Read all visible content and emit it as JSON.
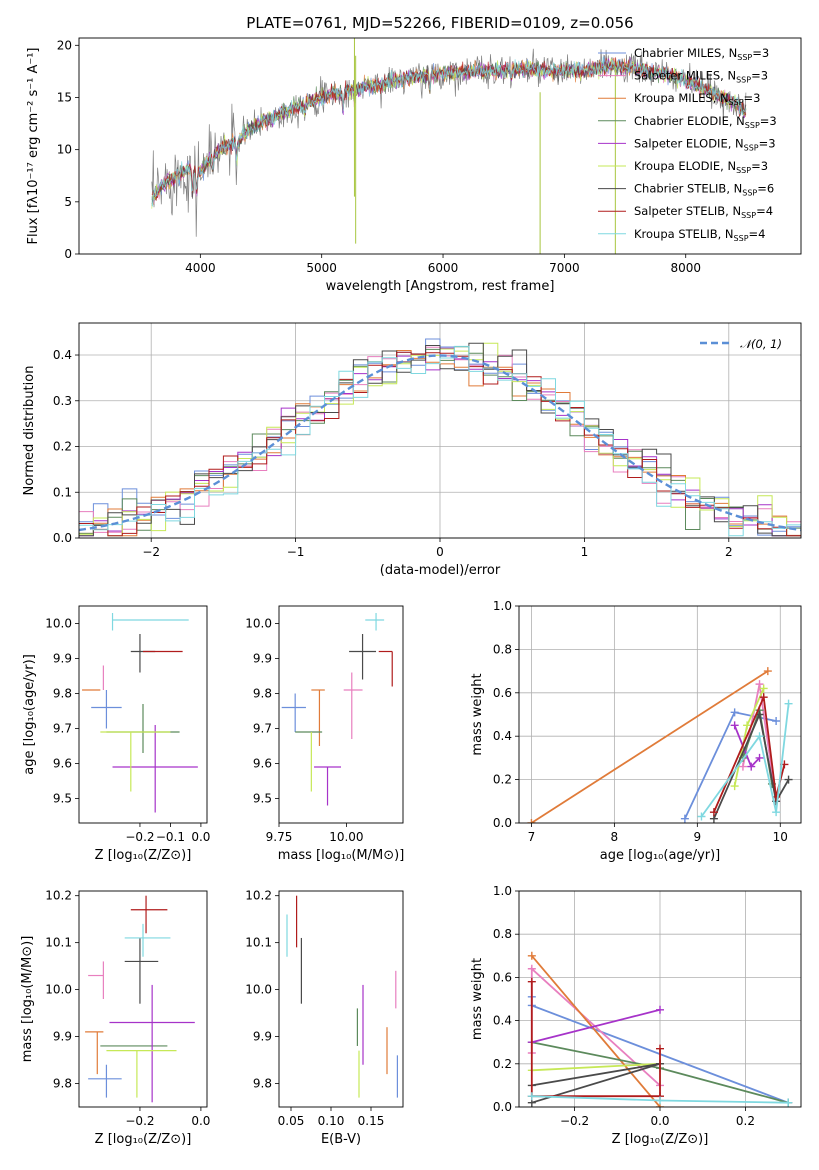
{
  "title": "PLATE=0761, MJD=52266, FIBERID=0109, z=0.056",
  "models": [
    {
      "name": "Chabrier MILES",
      "nssp": "3",
      "color": "#6c8fdb"
    },
    {
      "name": "Salpeter MILES",
      "nssp": "3",
      "color": "#e87fbf"
    },
    {
      "name": "Kroupa MILES",
      "nssp": "3",
      "color": "#e07b39"
    },
    {
      "name": "Chabrier ELODIE",
      "nssp": "3",
      "color": "#5c8a5c"
    },
    {
      "name": "Salpeter ELODIE",
      "nssp": "3",
      "color": "#a633c9"
    },
    {
      "name": "Kroupa ELODIE",
      "nssp": "3",
      "color": "#c6e857"
    },
    {
      "name": "Chabrier STELIB",
      "nssp": "6",
      "color": "#4a4a4a"
    },
    {
      "name": "Salpeter STELIB",
      "nssp": "4",
      "color": "#b01c1c"
    },
    {
      "name": "Kroupa STELIB",
      "nssp": "4",
      "color": "#7fd8e0"
    }
  ],
  "chart_data": [
    {
      "id": "spectrum",
      "type": "line",
      "xlabel": "wavelength [Angstrom, rest frame]",
      "ylabel": "Flux [fλ10⁻¹⁷ erg cm⁻² s⁻¹ A⁻¹]",
      "xlim": [
        3000,
        8950
      ],
      "ylim": [
        0,
        20.7
      ],
      "xticks": [
        4000,
        5000,
        6000,
        7000,
        8000
      ],
      "yticks": [
        0,
        5,
        10,
        15,
        20
      ],
      "legend_position": "right",
      "continuum": [
        [
          3600,
          5.2
        ],
        [
          3700,
          6.8
        ],
        [
          3800,
          7.4
        ],
        [
          3900,
          8.2
        ],
        [
          4000,
          7.8
        ],
        [
          4100,
          9.5
        ],
        [
          4200,
          10.3
        ],
        [
          4300,
          10.8
        ],
        [
          4400,
          11.8
        ],
        [
          4500,
          12.6
        ],
        [
          4600,
          13.1
        ],
        [
          4700,
          13.6
        ],
        [
          4800,
          14.1
        ],
        [
          4900,
          14.6
        ],
        [
          5000,
          15.0
        ],
        [
          5100,
          15.3
        ],
        [
          5200,
          15.6
        ],
        [
          5300,
          15.9
        ],
        [
          5400,
          16.1
        ],
        [
          5500,
          16.3
        ],
        [
          5600,
          16.6
        ],
        [
          5800,
          17.0
        ],
        [
          6000,
          17.3
        ],
        [
          6200,
          17.5
        ],
        [
          6400,
          17.6
        ],
        [
          6600,
          17.7
        ],
        [
          6800,
          17.6
        ],
        [
          7000,
          17.5
        ],
        [
          7200,
          17.6
        ],
        [
          7400,
          18.1
        ],
        [
          7600,
          17.7
        ],
        [
          7800,
          17.3
        ],
        [
          8000,
          16.6
        ],
        [
          8200,
          15.6
        ],
        [
          8400,
          14.5
        ],
        [
          8500,
          13.6
        ]
      ],
      "features": [
        [
          3934,
          3.0
        ],
        [
          3969,
          2.6
        ],
        [
          4102,
          1.5
        ],
        [
          4300,
          2.0
        ],
        [
          4861,
          1.0
        ],
        [
          5175,
          2.0
        ],
        [
          5270,
          1.0
        ],
        [
          5890,
          1.5
        ],
        [
          6563,
          1.0
        ]
      ],
      "data_series_color": "#808080"
    },
    {
      "id": "residuals",
      "type": "histogram",
      "xlabel": "(data-model)/error",
      "ylabel": "Normed distribution",
      "xlim": [
        -2.5,
        2.5
      ],
      "ylim": [
        0,
        0.47
      ],
      "xticks": [
        -2,
        -1,
        0,
        1,
        2
      ],
      "yticks": [
        0.0,
        0.1,
        0.2,
        0.3,
        0.4
      ],
      "bin_width": 0.1,
      "reference_curve": "𝒩(0, 1)",
      "legend_position": "top-right",
      "grid": true
    },
    {
      "id": "age_vs_Z",
      "type": "scatter",
      "xlabel": "Z [log₁₀(Z/Z⊙)]",
      "ylabel": "age  [log₁₀(age/yr)]",
      "xlim": [
        -0.4,
        0.02
      ],
      "ylim": [
        9.43,
        10.05
      ],
      "xticks": [
        -0.2,
        -0.1,
        0.0
      ],
      "yticks": [
        9.5,
        9.6,
        9.7,
        9.8,
        9.9,
        10.0
      ],
      "points": [
        {
          "x": -0.31,
          "y": 9.76,
          "ex": [
            0.05,
            0.05
          ],
          "ey": [
            0.06,
            0.05
          ]
        },
        {
          "x": -0.32,
          "y": 9.81,
          "ex": [
            0.0,
            0.0
          ],
          "ey": [
            0.0,
            0.07
          ]
        },
        {
          "x": -0.35,
          "y": 9.81,
          "ex": [
            0.04,
            0.02
          ],
          "ey": [
            0.0,
            0.0
          ]
        },
        {
          "x": -0.19,
          "y": 9.69,
          "ex": [
            0.12,
            0.12
          ],
          "ey": [
            0.06,
            0.08
          ]
        },
        {
          "x": -0.15,
          "y": 9.59,
          "ex": [
            0.14,
            0.14
          ],
          "ey": [
            0.13,
            0.12
          ]
        },
        {
          "x": -0.23,
          "y": 9.69,
          "ex": [
            0.1,
            0.13
          ],
          "ey": [
            0.17,
            0.0
          ]
        },
        {
          "x": -0.2,
          "y": 9.92,
          "ex": [
            0.03,
            0.05
          ],
          "ey": [
            0.06,
            0.05
          ]
        },
        {
          "x": -0.15,
          "y": 9.92,
          "ex": [
            0.04,
            0.09
          ],
          "ey": [
            0.0,
            0.0
          ]
        },
        {
          "x": -0.29,
          "y": 10.01,
          "ex": [
            0.0,
            0.25
          ],
          "ey": [
            0.03,
            0.02
          ]
        }
      ]
    },
    {
      "id": "age_vs_mass",
      "type": "scatter",
      "xlabel": "mass [log₁₀(M/M⊙)]",
      "ylabel": "",
      "xlim": [
        9.75,
        10.21
      ],
      "ylim": [
        9.43,
        10.05
      ],
      "xticks": [
        9.75,
        10.0
      ],
      "yticks": [
        9.5,
        9.6,
        9.7,
        9.8,
        9.9,
        10.0
      ],
      "points": [
        {
          "x": 9.81,
          "y": 9.76,
          "ex": [
            0.05,
            0.04
          ],
          "ey": [
            0.07,
            0.04
          ]
        },
        {
          "x": 10.02,
          "y": 9.81,
          "ex": [
            0.03,
            0.04
          ],
          "ey": [
            0.14,
            0.05
          ]
        },
        {
          "x": 9.9,
          "y": 9.81,
          "ex": [
            0.03,
            0.02
          ],
          "ey": [
            0.16,
            0.0
          ]
        },
        {
          "x": 9.88,
          "y": 9.69,
          "ex": [
            0.07,
            0.03
          ],
          "ey": [
            0.0,
            0.0
          ]
        },
        {
          "x": 9.93,
          "y": 9.59,
          "ex": [
            0.05,
            0.05
          ],
          "ey": [
            0.11,
            0.0
          ]
        },
        {
          "x": 9.87,
          "y": 9.69,
          "ex": [
            0.0,
            0.0
          ],
          "ey": [
            0.17,
            0.0
          ]
        },
        {
          "x": 10.06,
          "y": 9.92,
          "ex": [
            0.05,
            0.05
          ],
          "ey": [
            0.08,
            0.05
          ]
        },
        {
          "x": 10.17,
          "y": 9.92,
          "ex": [
            0.05,
            0.0
          ],
          "ey": [
            0.1,
            0.0
          ]
        },
        {
          "x": 10.11,
          "y": 10.01,
          "ex": [
            0.04,
            0.03
          ],
          "ey": [
            0.03,
            0.02
          ]
        }
      ]
    },
    {
      "id": "weight_vs_age",
      "type": "line",
      "xlabel": "age  [log₁₀(age/yr)]",
      "ylabel": "mass weight",
      "xlim": [
        6.85,
        10.25
      ],
      "ylim": [
        0,
        1.0
      ],
      "xticks": [
        7,
        8,
        9,
        10
      ],
      "yticks": [
        0.0,
        0.2,
        0.4,
        0.6,
        0.8,
        1.0
      ],
      "grid": true,
      "series": [
        {
          "x": [
            8.85,
            9.45,
            9.95
          ],
          "y": [
            0.02,
            0.51,
            0.47
          ]
        },
        {
          "x": [
            9.55,
            9.75,
            9.95
          ],
          "y": [
            0.26,
            0.64,
            0.1
          ]
        },
        {
          "x": [
            7.0,
            9.85
          ],
          "y": [
            0.0,
            0.7
          ]
        },
        {
          "x": [
            9.55,
            9.75,
            9.9
          ],
          "y": [
            0.3,
            0.52,
            0.18
          ]
        },
        {
          "x": [
            9.45,
            9.65,
            9.75
          ],
          "y": [
            0.45,
            0.26,
            0.3
          ]
        },
        {
          "x": [
            9.45,
            9.6,
            9.8
          ],
          "y": [
            0.17,
            0.45,
            0.62
          ]
        },
        {
          "x": [
            9.2,
            9.75,
            9.95,
            10.1
          ],
          "y": [
            0.02,
            0.5,
            0.1,
            0.2
          ]
        },
        {
          "x": [
            9.2,
            9.8,
            9.95,
            10.05
          ],
          "y": [
            0.05,
            0.58,
            0.12,
            0.27
          ]
        },
        {
          "x": [
            9.05,
            9.75,
            9.95,
            10.1
          ],
          "y": [
            0.03,
            0.4,
            0.05,
            0.55
          ]
        }
      ]
    },
    {
      "id": "mass_vs_Z",
      "type": "scatter",
      "xlabel": "Z [log₁₀(Z/Z⊙)]",
      "ylabel": "mass [log₁₀(M/M⊙)]",
      "xlim": [
        -0.4,
        0.02
      ],
      "ylim": [
        9.75,
        10.21
      ],
      "xticks": [
        -0.2,
        0.0
      ],
      "yticks": [
        9.8,
        9.9,
        10.0,
        10.1,
        10.2
      ],
      "points": [
        {
          "x": -0.31,
          "y": 9.81,
          "ex": [
            0.06,
            0.05
          ],
          "ey": [
            0.04,
            0.03
          ]
        },
        {
          "x": -0.32,
          "y": 10.03,
          "ex": [
            0.05,
            0.0
          ],
          "ey": [
            0.05,
            0.03
          ]
        },
        {
          "x": -0.34,
          "y": 9.91,
          "ex": [
            0.04,
            0.02
          ],
          "ey": [
            0.09,
            0.0
          ]
        },
        {
          "x": -0.21,
          "y": 9.88,
          "ex": [
            0.12,
            0.1
          ],
          "ey": [
            0.0,
            0.0
          ]
        },
        {
          "x": -0.16,
          "y": 9.93,
          "ex": [
            0.14,
            0.14
          ],
          "ey": [
            0.17,
            0.08
          ]
        },
        {
          "x": -0.21,
          "y": 9.87,
          "ex": [
            0.1,
            0.13
          ],
          "ey": [
            0.1,
            0.0
          ]
        },
        {
          "x": -0.2,
          "y": 10.06,
          "ex": [
            0.05,
            0.06
          ],
          "ey": [
            0.09,
            0.05
          ]
        },
        {
          "x": -0.18,
          "y": 10.17,
          "ex": [
            0.05,
            0.07
          ],
          "ey": [
            0.05,
            0.03
          ]
        },
        {
          "x": -0.19,
          "y": 10.11,
          "ex": [
            0.06,
            0.09
          ],
          "ey": [
            0.04,
            0.03
          ]
        }
      ]
    },
    {
      "id": "mass_vs_ebv",
      "type": "scatter",
      "xlabel": "E(B-V)",
      "ylabel": "",
      "xlim": [
        0.035,
        0.19
      ],
      "ylim": [
        9.75,
        10.21
      ],
      "xticks": [
        0.05,
        0.1,
        0.15
      ],
      "yticks": [
        9.8,
        9.9,
        10.0,
        10.1,
        10.2
      ],
      "points": [
        {
          "x": 0.183,
          "y": 9.81,
          "ex": [
            0.0,
            0.0
          ],
          "ey": [
            0.04,
            0.05
          ]
        },
        {
          "x": 0.181,
          "y": 10.03,
          "ex": [
            0.0,
            0.0
          ],
          "ey": [
            0.07,
            0.01
          ]
        },
        {
          "x": 0.17,
          "y": 9.91,
          "ex": [
            0.0,
            0.0
          ],
          "ey": [
            0.09,
            0.01
          ]
        },
        {
          "x": 0.133,
          "y": 9.88,
          "ex": [
            0.0,
            0.0
          ],
          "ey": [
            0.0,
            0.08
          ]
        },
        {
          "x": 0.14,
          "y": 9.93,
          "ex": [
            0.0,
            0.0
          ],
          "ey": [
            0.09,
            0.08
          ]
        },
        {
          "x": 0.135,
          "y": 9.87,
          "ex": [
            0.0,
            0.0
          ],
          "ey": [
            0.1,
            0.0
          ]
        },
        {
          "x": 0.063,
          "y": 10.06,
          "ex": [
            0.0,
            0.0
          ],
          "ey": [
            0.09,
            0.05
          ]
        },
        {
          "x": 0.057,
          "y": 10.17,
          "ex": [
            0.0,
            0.0
          ],
          "ey": [
            0.08,
            0.03
          ]
        },
        {
          "x": 0.045,
          "y": 10.11,
          "ex": [
            0.0,
            0.0
          ],
          "ey": [
            0.04,
            0.05
          ]
        }
      ]
    },
    {
      "id": "weight_vs_Z",
      "type": "line",
      "xlabel": "Z [log₁₀(Z/Z⊙)]",
      "ylabel": "mass weight",
      "xlim": [
        -0.33,
        0.33
      ],
      "ylim": [
        0,
        1.0
      ],
      "xticks": [
        -0.2,
        0.0,
        0.2
      ],
      "yticks": [
        0.0,
        0.2,
        0.4,
        0.6,
        0.8,
        1.0
      ],
      "grid": true,
      "series": [
        {
          "x": [
            -0.3,
            -0.3,
            0.3
          ],
          "y": [
            0.51,
            0.47,
            0.02
          ]
        },
        {
          "x": [
            -0.3,
            -0.3,
            0.0
          ],
          "y": [
            0.25,
            0.64,
            0.1
          ]
        },
        {
          "x": [
            -0.3,
            0.0
          ],
          "y": [
            0.7,
            0.0
          ]
        },
        {
          "x": [
            -0.3,
            0.0,
            0.3
          ],
          "y": [
            0.3,
            0.18,
            0.02
          ]
        },
        {
          "x": [
            -0.3,
            0.0
          ],
          "y": [
            0.3,
            0.45
          ]
        },
        {
          "x": [
            -0.3,
            0.0
          ],
          "y": [
            0.17,
            0.2
          ]
        },
        {
          "x": [
            -0.3,
            0.0,
            -0.3,
            0.0
          ],
          "y": [
            0.1,
            0.2,
            0.02,
            0.2
          ]
        },
        {
          "x": [
            -0.3,
            -0.3,
            0.0,
            0.0
          ],
          "y": [
            0.58,
            0.05,
            0.05,
            0.27
          ]
        },
        {
          "x": [
            -0.3,
            0.0,
            0.3
          ],
          "y": [
            0.05,
            0.03,
            0.02
          ]
        }
      ]
    }
  ]
}
